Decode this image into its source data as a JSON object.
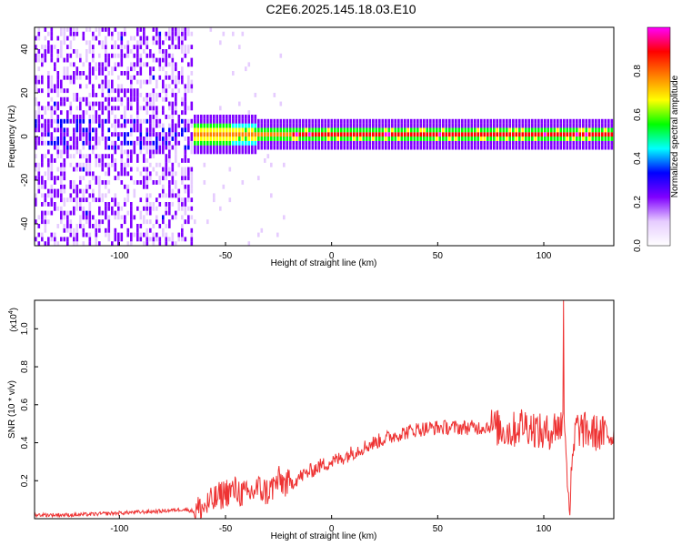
{
  "title": "C2E6.2025.145.18.03.E10",
  "chart_data": [
    {
      "type": "heatmap",
      "xlabel": "Height of straight line (km)",
      "ylabel": "Frequency (Hz)",
      "xlim": [
        -140,
        133
      ],
      "ylim": [
        -50,
        50
      ],
      "xticks": [
        -100,
        -50,
        0,
        50,
        100
      ],
      "yticks": [
        -40,
        -20,
        0,
        20,
        40
      ],
      "colorbar": {
        "label": "Normalized spectral amplitude",
        "range": [
          0.0,
          1.0
        ],
        "ticks": [
          "0.0",
          "0.2",
          "0.4",
          "0.6",
          "0.8"
        ],
        "colors": [
          "#ffffff",
          "#e6ccff",
          "#8000ff",
          "#0000ff",
          "#00ffff",
          "#00ff00",
          "#ffff00",
          "#ff8000",
          "#ff0000",
          "#ff00ff"
        ]
      },
      "ridge": {
        "frequency_hz": 0,
        "segments": [
          {
            "from_km": -140,
            "to_km": -65,
            "character": "scattered noise"
          },
          {
            "from_km": -65,
            "to_km": -20,
            "character": "narrowing band"
          },
          {
            "from_km": -20,
            "to_km": 133,
            "character": "strong line near 0 Hz"
          }
        ]
      }
    },
    {
      "type": "line",
      "xlabel": "Height of straight line (km)",
      "ylabel": "SNR (10 * v/v)",
      "scale_label": "(x10",
      "scale_exp": "4",
      "scale_close": ")",
      "xlim": [
        -140,
        133
      ],
      "ylim": [
        0,
        1.15
      ],
      "xticks": [
        -100,
        -50,
        0,
        50,
        100
      ],
      "yticks": [
        "0.2",
        "0.4",
        "0.6",
        "0.8",
        "1.0"
      ],
      "series": [
        {
          "color": "#ee3333",
          "x": [
            -140,
            -120,
            -100,
            -80,
            -70,
            -65,
            -60,
            -55,
            -50,
            -45,
            -40,
            -35,
            -30,
            -25,
            -20,
            -15,
            -10,
            -5,
            0,
            5,
            10,
            20,
            30,
            40,
            50,
            60,
            70,
            75,
            80,
            85,
            90,
            95,
            100,
            105,
            110,
            112,
            115,
            120,
            125,
            133
          ],
          "y": [
            0.02,
            0.02,
            0.03,
            0.04,
            0.05,
            0.04,
            0.06,
            0.1,
            0.14,
            0.15,
            0.12,
            0.16,
            0.14,
            0.2,
            0.18,
            0.22,
            0.25,
            0.28,
            0.3,
            0.32,
            0.35,
            0.4,
            0.44,
            0.47,
            0.48,
            0.48,
            0.48,
            0.49,
            0.47,
            0.46,
            0.5,
            0.48,
            0.44,
            0.48,
            0.5,
            0.05,
            0.48,
            0.46,
            0.45,
            0.44
          ]
        }
      ]
    }
  ]
}
